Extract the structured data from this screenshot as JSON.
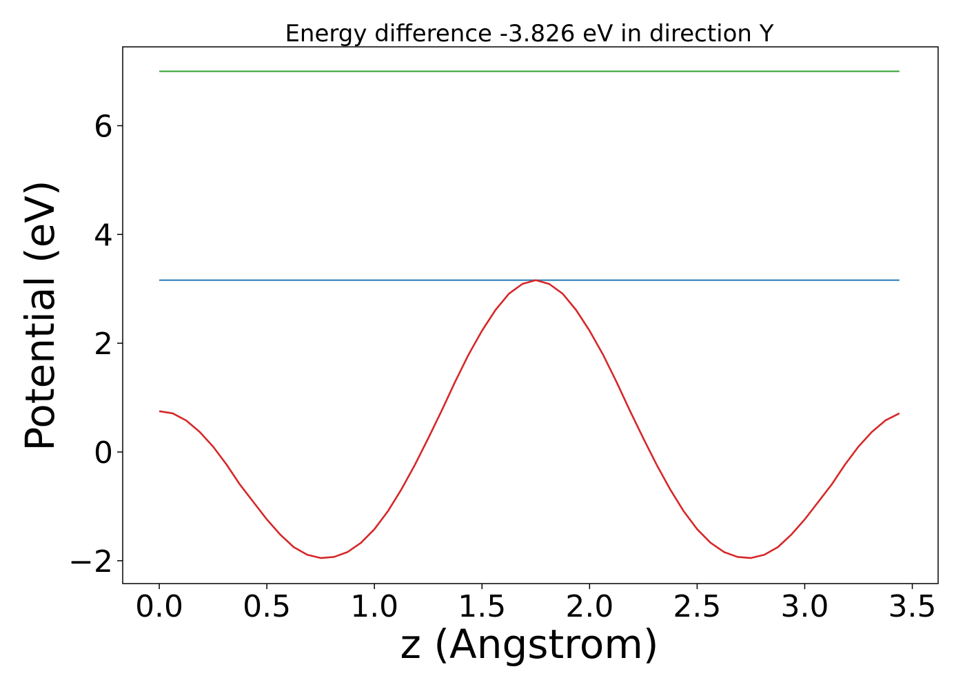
{
  "chart_data": {
    "type": "line",
    "title": "Energy difference -3.826 eV in direction Y",
    "xlabel": "z (Angstrom)",
    "ylabel": "Potential (eV)",
    "xlim": [
      -0.17,
      3.62
    ],
    "ylim": [
      -2.42,
      7.45
    ],
    "xticks": [
      0.0,
      0.5,
      1.0,
      1.5,
      2.0,
      2.5,
      3.0,
      3.5
    ],
    "xtick_labels": [
      "0.0",
      "0.5",
      "1.0",
      "1.5",
      "2.0",
      "2.5",
      "3.0",
      "3.5"
    ],
    "yticks": [
      -2,
      0,
      2,
      4,
      6
    ],
    "ytick_labels": [
      "−2",
      "0",
      "2",
      "4",
      "6"
    ],
    "grid": false,
    "series": [
      {
        "color": "#2ca02c",
        "x": [
          0.0,
          3.44
        ],
        "y": [
          7.0,
          7.0
        ]
      },
      {
        "color": "#1f77b4",
        "x": [
          0.0,
          3.44
        ],
        "y": [
          3.16,
          3.16
        ]
      },
      {
        "color": "#d62728",
        "x": [
          0.0,
          0.0625,
          0.125,
          0.1875,
          0.25,
          0.3125,
          0.375,
          0.4375,
          0.5,
          0.5625,
          0.625,
          0.6875,
          0.75,
          0.8125,
          0.875,
          0.9375,
          1.0,
          1.0625,
          1.125,
          1.1875,
          1.25,
          1.3125,
          1.375,
          1.4375,
          1.5,
          1.5625,
          1.625,
          1.6875,
          1.75,
          1.8125,
          1.875,
          1.9375,
          2.0,
          2.0625,
          2.125,
          2.1875,
          2.25,
          2.3125,
          2.375,
          2.4375,
          2.5,
          2.5625,
          2.625,
          2.6875,
          2.75,
          2.8125,
          2.875,
          2.9375,
          3.0,
          3.0625,
          3.125,
          3.1875,
          3.25,
          3.3125,
          3.375,
          3.44
        ],
        "y": [
          0.75,
          0.71,
          0.58,
          0.37,
          0.1,
          -0.23,
          -0.6,
          -0.92,
          -1.24,
          -1.52,
          -1.75,
          -1.89,
          -1.95,
          -1.93,
          -1.84,
          -1.67,
          -1.42,
          -1.09,
          -0.69,
          -0.24,
          0.25,
          0.76,
          1.29,
          1.79,
          2.23,
          2.61,
          2.91,
          3.09,
          3.16,
          3.09,
          2.91,
          2.61,
          2.23,
          1.79,
          1.29,
          0.76,
          0.25,
          -0.24,
          -0.69,
          -1.09,
          -1.42,
          -1.67,
          -1.84,
          -1.93,
          -1.95,
          -1.89,
          -1.75,
          -1.52,
          -1.24,
          -0.92,
          -0.6,
          -0.23,
          0.1,
          0.37,
          0.58,
          0.71
        ]
      }
    ]
  }
}
